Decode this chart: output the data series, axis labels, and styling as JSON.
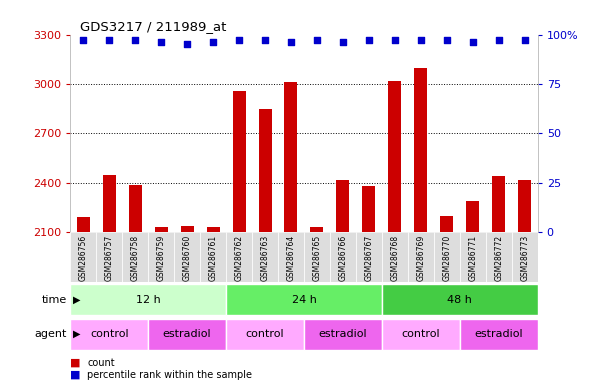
{
  "title": "GDS3217 / 211989_at",
  "samples": [
    "GSM286756",
    "GSM286757",
    "GSM286758",
    "GSM286759",
    "GSM286760",
    "GSM286761",
    "GSM286762",
    "GSM286763",
    "GSM286764",
    "GSM286765",
    "GSM286766",
    "GSM286767",
    "GSM286768",
    "GSM286769",
    "GSM286770",
    "GSM286771",
    "GSM286772",
    "GSM286773"
  ],
  "counts": [
    2195,
    2450,
    2390,
    2130,
    2140,
    2130,
    2960,
    2850,
    3010,
    2135,
    2420,
    2380,
    3020,
    3100,
    2200,
    2290,
    2440,
    2420
  ],
  "percentile_ranks": [
    97,
    97,
    97,
    96,
    95,
    96,
    97,
    97,
    96,
    97,
    96,
    97,
    97,
    97,
    97,
    96,
    97,
    97
  ],
  "bar_color": "#cc0000",
  "dot_color": "#0000cc",
  "ylim_left": [
    2100,
    3300
  ],
  "ylim_right": [
    0,
    100
  ],
  "yticks_left": [
    2100,
    2400,
    2700,
    3000,
    3300
  ],
  "yticks_right": [
    0,
    25,
    50,
    75,
    100
  ],
  "ylabel_right_ticks": [
    "0",
    "25",
    "50",
    "75",
    "100%"
  ],
  "gridlines": [
    3000,
    2700,
    2400
  ],
  "time_groups": [
    {
      "label": "12 h",
      "start": 0,
      "end": 6,
      "color": "#ccffcc"
    },
    {
      "label": "24 h",
      "start": 6,
      "end": 12,
      "color": "#66ee66"
    },
    {
      "label": "48 h",
      "start": 12,
      "end": 18,
      "color": "#44cc44"
    }
  ],
  "agent_groups": [
    {
      "label": "control",
      "start": 0,
      "end": 3,
      "color": "#ffaaff"
    },
    {
      "label": "estradiol",
      "start": 3,
      "end": 6,
      "color": "#ee66ee"
    },
    {
      "label": "control",
      "start": 6,
      "end": 9,
      "color": "#ffaaff"
    },
    {
      "label": "estradiol",
      "start": 9,
      "end": 12,
      "color": "#ee66ee"
    },
    {
      "label": "control",
      "start": 12,
      "end": 15,
      "color": "#ffaaff"
    },
    {
      "label": "estradiol",
      "start": 15,
      "end": 18,
      "color": "#ee66ee"
    }
  ],
  "legend_items": [
    {
      "label": "count",
      "color": "#cc0000"
    },
    {
      "label": "percentile rank within the sample",
      "color": "#0000cc"
    }
  ],
  "background_color": "#ffffff",
  "tick_label_color_left": "#cc0000",
  "tick_label_color_right": "#0000cc",
  "xticklabel_bg": "#dddddd",
  "row_label_color": "#000000",
  "bar_width": 0.5
}
